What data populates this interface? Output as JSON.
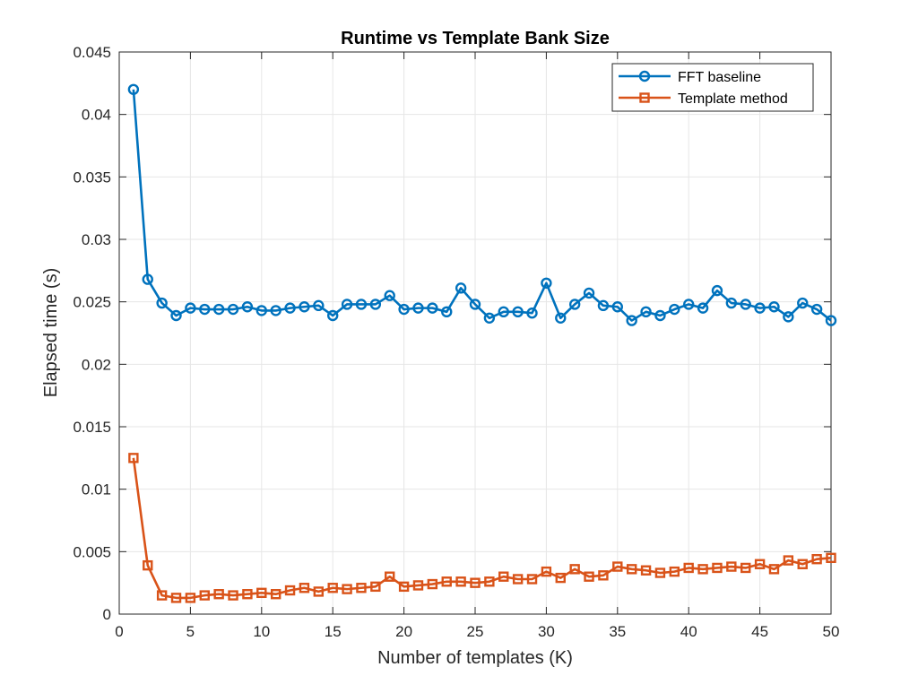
{
  "chart_data": {
    "type": "line",
    "title": "Runtime vs Template Bank Size",
    "xlabel": "Number of templates (K)",
    "ylabel": "Elapsed time (s)",
    "xlim": [
      0,
      50
    ],
    "ylim": [
      0,
      0.045
    ],
    "xticks": [
      0,
      5,
      10,
      15,
      20,
      25,
      30,
      35,
      40,
      45,
      50
    ],
    "xtick_labels": [
      "0",
      "5",
      "10",
      "15",
      "20",
      "25",
      "30",
      "35",
      "40",
      "45",
      "50"
    ],
    "yticks": [
      0,
      0.005,
      0.01,
      0.015,
      0.02,
      0.025,
      0.03,
      0.035,
      0.04,
      0.045
    ],
    "ytick_labels": [
      "0",
      "0.005",
      "0.01",
      "0.015",
      "0.02",
      "0.025",
      "0.03",
      "0.035",
      "0.04",
      "0.045"
    ],
    "grid": true,
    "legend_position": "top-right",
    "x": [
      1,
      2,
      3,
      4,
      5,
      6,
      7,
      8,
      9,
      10,
      11,
      12,
      13,
      14,
      15,
      16,
      17,
      18,
      19,
      20,
      21,
      22,
      23,
      24,
      25,
      26,
      27,
      28,
      29,
      30,
      31,
      32,
      33,
      34,
      35,
      36,
      37,
      38,
      39,
      40,
      41,
      42,
      43,
      44,
      45,
      46,
      47,
      48,
      49,
      50
    ],
    "series": [
      {
        "name": "FFT baseline",
        "color": "#0072BD",
        "marker": "circle",
        "values": [
          0.042,
          0.0268,
          0.0249,
          0.0239,
          0.0245,
          0.0244,
          0.0244,
          0.0244,
          0.0246,
          0.0243,
          0.0243,
          0.0245,
          0.0246,
          0.0247,
          0.0239,
          0.0248,
          0.0248,
          0.0248,
          0.0255,
          0.0244,
          0.0245,
          0.0245,
          0.0242,
          0.0261,
          0.0248,
          0.0237,
          0.0242,
          0.0242,
          0.0241,
          0.0265,
          0.0237,
          0.0248,
          0.0257,
          0.0247,
          0.0246,
          0.0235,
          0.0242,
          0.0239,
          0.0244,
          0.0248,
          0.0245,
          0.0259,
          0.0249,
          0.0248,
          0.0245,
          0.0246,
          0.0238,
          0.0249,
          0.0244,
          0.0235
        ]
      },
      {
        "name": "Template method",
        "color": "#D95319",
        "marker": "square",
        "values": [
          0.0125,
          0.0039,
          0.0015,
          0.0013,
          0.0013,
          0.0015,
          0.0016,
          0.0015,
          0.0016,
          0.0017,
          0.0016,
          0.0019,
          0.0021,
          0.0018,
          0.0021,
          0.002,
          0.0021,
          0.0022,
          0.003,
          0.0022,
          0.0023,
          0.0024,
          0.0026,
          0.0026,
          0.0025,
          0.0026,
          0.003,
          0.0028,
          0.0028,
          0.0034,
          0.0029,
          0.0036,
          0.003,
          0.0031,
          0.0038,
          0.0036,
          0.0035,
          0.0033,
          0.0034,
          0.0037,
          0.0036,
          0.0037,
          0.0038,
          0.0037,
          0.004,
          0.0036,
          0.0043,
          0.004,
          0.0044,
          0.0045
        ]
      }
    ]
  }
}
